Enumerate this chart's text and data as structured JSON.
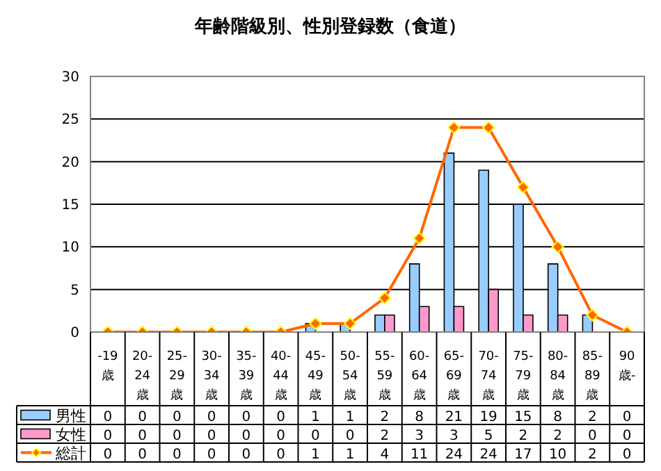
{
  "chart_data": {
    "type": "bar",
    "title": "年齢階級別、性別登録数（食道）",
    "categories": [
      "-19歳",
      "20-24歳",
      "25-29歳",
      "30-34歳",
      "35-39歳",
      "40-44歳",
      "45-49歳",
      "50-54歳",
      "55-59歳",
      "60-64歳",
      "65-69歳",
      "70-74歳",
      "75-79歳",
      "80-84歳",
      "85-89歳",
      "90歳-"
    ],
    "series": [
      {
        "name": "男性",
        "color": "#99ccff",
        "values": [
          0,
          0,
          0,
          0,
          0,
          0,
          1,
          1,
          2,
          8,
          21,
          19,
          15,
          8,
          2,
          0
        ]
      },
      {
        "name": "女性",
        "color": "#ff99cc",
        "values": [
          0,
          0,
          0,
          0,
          0,
          0,
          0,
          0,
          2,
          3,
          3,
          5,
          2,
          2,
          0,
          0
        ]
      },
      {
        "name": "総計",
        "type": "line",
        "color": "#ff6600",
        "values": [
          0,
          0,
          0,
          0,
          0,
          0,
          1,
          1,
          4,
          11,
          24,
          24,
          17,
          10,
          2,
          0
        ]
      }
    ],
    "ylim": [
      0,
      30
    ],
    "yticks": [
      0,
      5,
      10,
      15,
      20,
      25,
      30
    ],
    "grid": "y",
    "legend": "bottom left",
    "marker": "diamond",
    "data_labels": true
  }
}
